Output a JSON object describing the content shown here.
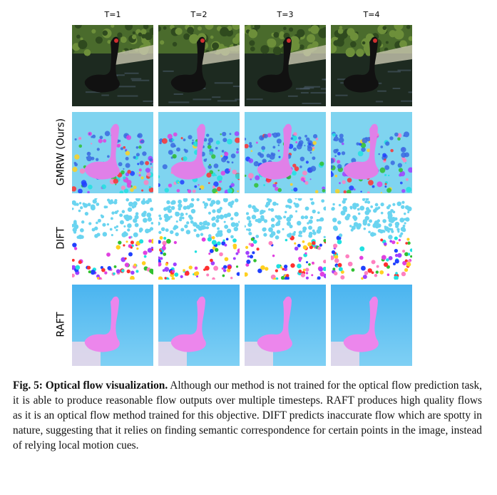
{
  "figure": {
    "columns": [
      "T=1",
      "T=2",
      "T=3",
      "T=4"
    ],
    "rows": [
      "GMRW (Ours)",
      "DIFT",
      "RAFT"
    ]
  },
  "caption": {
    "label": "Fig. 5:",
    "title": "Optical flow visualization.",
    "text": "Although our method is not trained for the optical flow prediction task, it is able to produce reasonable flow outputs over multiple timesteps. RAFT produces high quality flows as it is an optical flow method trained for this objective. DIFT predicts inaccurate flow which are spotty in nature, suggesting that it relies on finding semantic correspondence for certain points in the image, instead of relying local motion cues."
  }
}
